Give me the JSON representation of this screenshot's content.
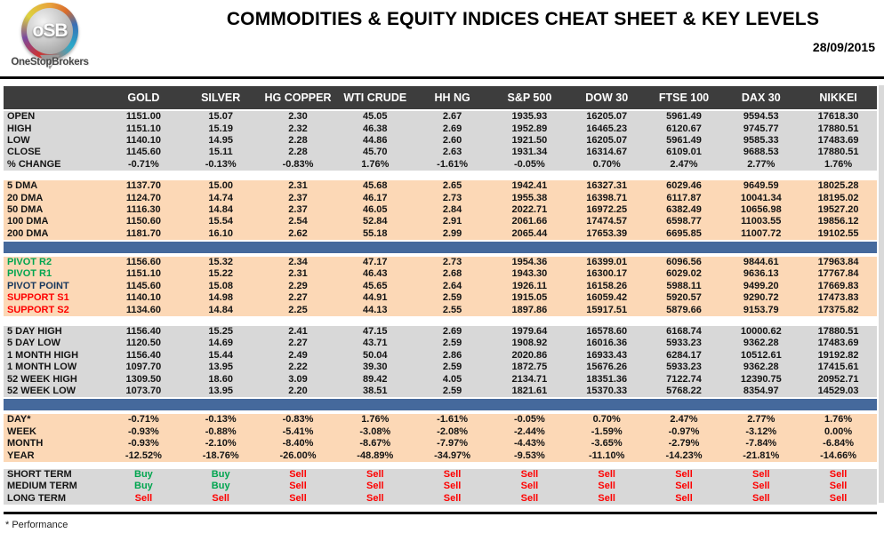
{
  "header": {
    "logo_letters": "oSB",
    "logo_text": "OneStopBrokers",
    "title": "COMMODITIES & EQUITY INDICES CHEAT SHEET & KEY LEVELS",
    "date": "28/09/2015"
  },
  "colors": {
    "header_bg": "#3d3d3d",
    "gray_band": "#d8d8d8",
    "peach_band": "#fcd8b6",
    "divider_blue": "#45699c",
    "buy_green": "#00a54f",
    "sell_red": "#fe0000",
    "pivot_navy": "#17375d"
  },
  "table": {
    "columns": [
      "GOLD",
      "SILVER",
      "HG COPPER",
      "WTI CRUDE",
      "HH NG",
      "S&P 500",
      "DOW 30",
      "FTSE 100",
      "DAX 30",
      "NIKKEI"
    ],
    "sections": [
      {
        "id": "ohlc",
        "bg": "gray",
        "separator_after": "gap",
        "rows": [
          {
            "label": "OPEN",
            "values": [
              "1151.00",
              "15.07",
              "2.30",
              "45.05",
              "2.67",
              "1935.93",
              "16205.07",
              "5961.49",
              "9594.53",
              "17618.30"
            ]
          },
          {
            "label": "HIGH",
            "values": [
              "1151.10",
              "15.19",
              "2.32",
              "46.38",
              "2.69",
              "1952.89",
              "16465.23",
              "6120.67",
              "9745.77",
              "17880.51"
            ]
          },
          {
            "label": "LOW",
            "values": [
              "1140.10",
              "14.95",
              "2.28",
              "44.86",
              "2.60",
              "1921.50",
              "16205.07",
              "5961.49",
              "9585.33",
              "17483.69"
            ]
          },
          {
            "label": "CLOSE",
            "values": [
              "1145.60",
              "15.11",
              "2.28",
              "45.70",
              "2.63",
              "1931.34",
              "16314.67",
              "6109.01",
              "9688.53",
              "17880.51"
            ]
          },
          {
            "label": "% CHANGE",
            "values": [
              "-0.71%",
              "-0.13%",
              "-0.83%",
              "1.76%",
              "-1.61%",
              "-0.05%",
              "0.70%",
              "2.47%",
              "2.77%",
              "1.76%"
            ]
          }
        ]
      },
      {
        "id": "dma",
        "bg": "peach",
        "separator_after": "bar",
        "rows": [
          {
            "label": "5 DMA",
            "values": [
              "1137.70",
              "15.00",
              "2.31",
              "45.68",
              "2.65",
              "1942.41",
              "16327.31",
              "6029.46",
              "9649.59",
              "18025.28"
            ]
          },
          {
            "label": "20 DMA",
            "values": [
              "1124.70",
              "14.74",
              "2.37",
              "46.17",
              "2.73",
              "1955.38",
              "16398.71",
              "6117.87",
              "10041.34",
              "18195.02"
            ]
          },
          {
            "label": "50 DMA",
            "values": [
              "1116.30",
              "14.84",
              "2.37",
              "46.05",
              "2.84",
              "2022.71",
              "16972.25",
              "6382.49",
              "10656.98",
              "19527.20"
            ]
          },
          {
            "label": "100 DMA",
            "values": [
              "1150.60",
              "15.54",
              "2.54",
              "52.84",
              "2.91",
              "2061.66",
              "17474.57",
              "6598.77",
              "11003.55",
              "19856.12"
            ]
          },
          {
            "label": "200 DMA",
            "values": [
              "1181.70",
              "16.10",
              "2.62",
              "55.18",
              "2.99",
              "2065.44",
              "17653.39",
              "6695.85",
              "11007.72",
              "19102.55"
            ]
          }
        ]
      },
      {
        "id": "pivots",
        "bg": "peach",
        "separator_after": "gap",
        "rows": [
          {
            "label": "PIVOT R2",
            "label_color": "green",
            "values": [
              "1156.60",
              "15.32",
              "2.34",
              "47.17",
              "2.73",
              "1954.36",
              "16399.01",
              "6096.56",
              "9844.61",
              "17963.84"
            ]
          },
          {
            "label": "PIVOT R1",
            "label_color": "green",
            "values": [
              "1151.10",
              "15.22",
              "2.31",
              "46.43",
              "2.68",
              "1943.30",
              "16300.17",
              "6029.02",
              "9636.13",
              "17767.84"
            ]
          },
          {
            "label": "PIVOT POINT",
            "label_color": "navy",
            "values": [
              "1145.60",
              "15.08",
              "2.29",
              "45.65",
              "2.64",
              "1926.11",
              "16158.26",
              "5988.11",
              "9499.20",
              "17669.83"
            ]
          },
          {
            "label": "SUPPORT S1",
            "label_color": "red",
            "values": [
              "1140.10",
              "14.98",
              "2.27",
              "44.91",
              "2.59",
              "1915.05",
              "16059.42",
              "5920.57",
              "9290.72",
              "17473.83"
            ]
          },
          {
            "label": "SUPPORT S2",
            "label_color": "red",
            "values": [
              "1134.60",
              "14.84",
              "2.25",
              "44.13",
              "2.55",
              "1897.86",
              "15917.51",
              "5879.66",
              "9153.79",
              "17375.82"
            ]
          }
        ]
      },
      {
        "id": "ranges",
        "bg": "gray",
        "separator_after": "bar",
        "rows": [
          {
            "label": "5 DAY HIGH",
            "values": [
              "1156.40",
              "15.25",
              "2.41",
              "47.15",
              "2.69",
              "1979.64",
              "16578.60",
              "6168.74",
              "10000.62",
              "17880.51"
            ]
          },
          {
            "label": "5 DAY LOW",
            "values": [
              "1120.50",
              "14.69",
              "2.27",
              "43.71",
              "2.59",
              "1908.92",
              "16016.36",
              "5933.23",
              "9362.28",
              "17483.69"
            ]
          },
          {
            "label": "1 MONTH HIGH",
            "values": [
              "1156.40",
              "15.44",
              "2.49",
              "50.04",
              "2.86",
              "2020.86",
              "16933.43",
              "6284.17",
              "10512.61",
              "19192.82"
            ]
          },
          {
            "label": "1 MONTH LOW",
            "values": [
              "1097.70",
              "13.95",
              "2.22",
              "39.30",
              "2.59",
              "1872.75",
              "15676.26",
              "5933.23",
              "9362.28",
              "17415.61"
            ]
          },
          {
            "label": "52 WEEK HIGH",
            "values": [
              "1309.50",
              "18.60",
              "3.09",
              "89.42",
              "4.05",
              "2134.71",
              "18351.36",
              "7122.74",
              "12390.75",
              "20952.71"
            ]
          },
          {
            "label": "52 WEEK LOW",
            "values": [
              "1073.70",
              "13.95",
              "2.20",
              "38.51",
              "2.59",
              "1821.61",
              "15370.33",
              "5768.22",
              "8354.97",
              "14529.03"
            ]
          }
        ]
      },
      {
        "id": "performance",
        "bg": "peach",
        "separator_after": "gap-small",
        "rows": [
          {
            "label": "DAY*",
            "values": [
              "-0.71%",
              "-0.13%",
              "-0.83%",
              "1.76%",
              "-1.61%",
              "-0.05%",
              "0.70%",
              "2.47%",
              "2.77%",
              "1.76%"
            ]
          },
          {
            "label": "WEEK",
            "values": [
              "-0.93%",
              "-0.88%",
              "-5.41%",
              "-3.08%",
              "-2.08%",
              "-2.44%",
              "-1.59%",
              "-0.97%",
              "-3.12%",
              "0.00%"
            ]
          },
          {
            "label": "MONTH",
            "values": [
              "-0.93%",
              "-2.10%",
              "-8.40%",
              "-8.67%",
              "-7.97%",
              "-4.43%",
              "-3.65%",
              "-2.79%",
              "-7.84%",
              "-6.84%"
            ]
          },
          {
            "label": "YEAR",
            "values": [
              "-12.52%",
              "-18.76%",
              "-26.00%",
              "-48.89%",
              "-34.97%",
              "-9.53%",
              "-11.10%",
              "-14.23%",
              "-21.81%",
              "-14.66%"
            ]
          }
        ]
      },
      {
        "id": "signals",
        "bg": "gray",
        "separator_after": "line",
        "rows": [
          {
            "label": "SHORT TERM",
            "values": [
              "Buy",
              "Buy",
              "Sell",
              "Sell",
              "Sell",
              "Sell",
              "Sell",
              "Sell",
              "Sell",
              "Sell"
            ]
          },
          {
            "label": "MEDIUM TERM",
            "values": [
              "Buy",
              "Buy",
              "Sell",
              "Sell",
              "Sell",
              "Sell",
              "Sell",
              "Sell",
              "Sell",
              "Sell"
            ]
          },
          {
            "label": "LONG TERM",
            "values": [
              "Sell",
              "Sell",
              "Sell",
              "Sell",
              "Sell",
              "Sell",
              "Sell",
              "Sell",
              "Sell",
              "Sell"
            ]
          }
        ]
      }
    ]
  },
  "footnote": "* Performance"
}
